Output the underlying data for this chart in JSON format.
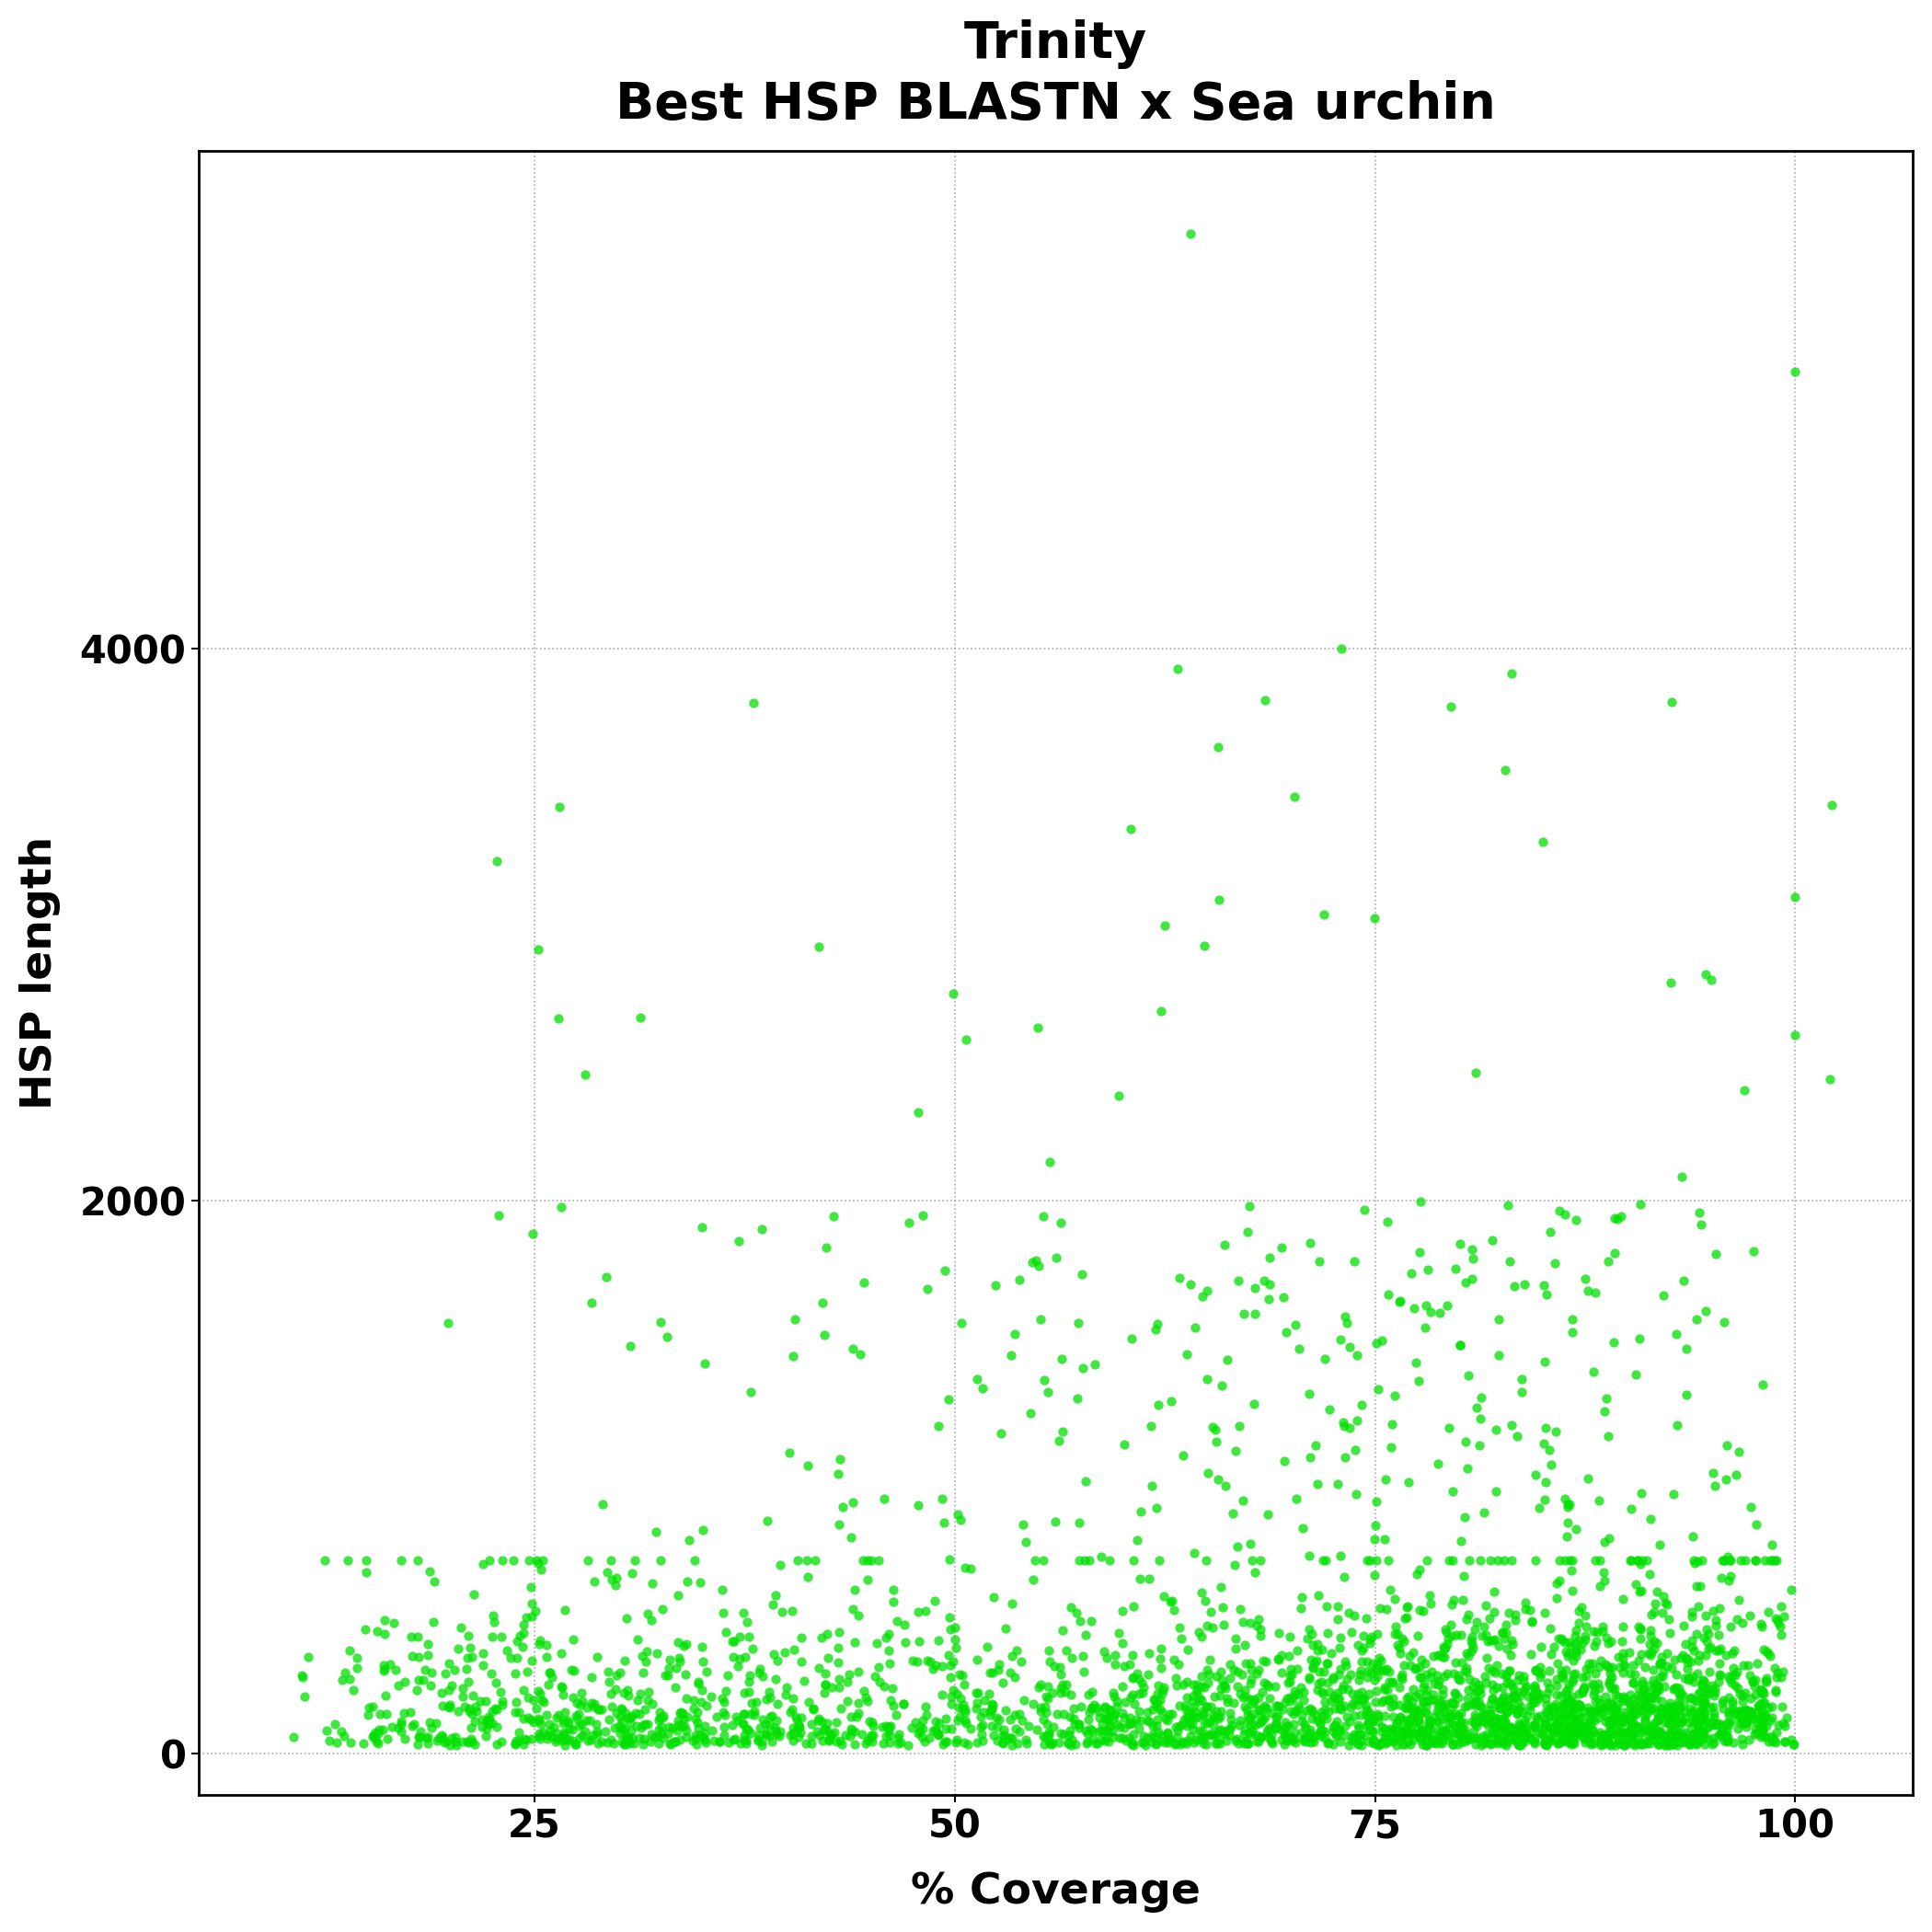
{
  "title_line1": "Trinity",
  "title_line2": "Best HSP BLASTN x Sea urchin",
  "xlabel": "% Coverage",
  "ylabel": "HSP length",
  "title_fontsize": 40,
  "axis_label_fontsize": 34,
  "tick_fontsize": 30,
  "xlim": [
    5,
    107
  ],
  "ylim": [
    -150,
    5800
  ],
  "xticks": [
    25,
    50,
    75,
    100
  ],
  "yticks": [
    0,
    2000,
    4000
  ],
  "point_color": "#00e000",
  "contour_color": "#0a0a1a",
  "point_size": 55,
  "point_alpha": 0.75,
  "background_color": "#ffffff",
  "seed": 42
}
